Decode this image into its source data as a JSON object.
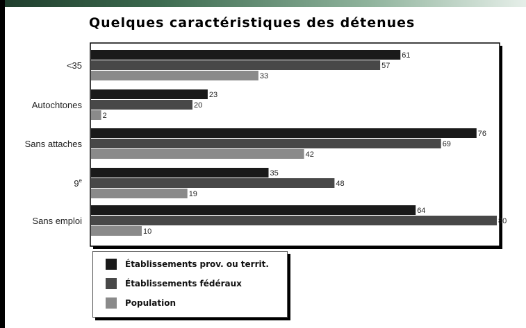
{
  "header": {
    "title": "Quelques caractéristiques des détenues"
  },
  "colors": {
    "series": [
      "#1a1a1a",
      "#484848",
      "#8a8a8a"
    ],
    "border": "#000000",
    "grid": "#777777"
  },
  "chart_data": {
    "type": "bar",
    "orientation": "horizontal",
    "title": "Quelques caractéristiques des détenues",
    "xlabel": "",
    "ylabel": "",
    "xlim": [
      0,
      80
    ],
    "grid": false,
    "legend_position": "bottom-left",
    "categories": [
      "<35",
      "Autochtones",
      "Sans attaches",
      "9e",
      "Sans emploi"
    ],
    "category_labels": [
      "<35",
      "Autochtones",
      "Sans attaches",
      "9",
      "Sans emploi"
    ],
    "series": [
      {
        "name": "Établissements prov. ou territ.",
        "values": [
          61,
          23,
          76,
          35,
          64
        ]
      },
      {
        "name": "Établissements fédéraux",
        "values": [
          57,
          20,
          69,
          48,
          80
        ]
      },
      {
        "name": "Population",
        "values": [
          33,
          2,
          42,
          19,
          10
        ]
      }
    ]
  },
  "legend": {
    "items": [
      "Établissements prov. ou territ.",
      "Établissements fédéraux",
      "Population"
    ]
  }
}
